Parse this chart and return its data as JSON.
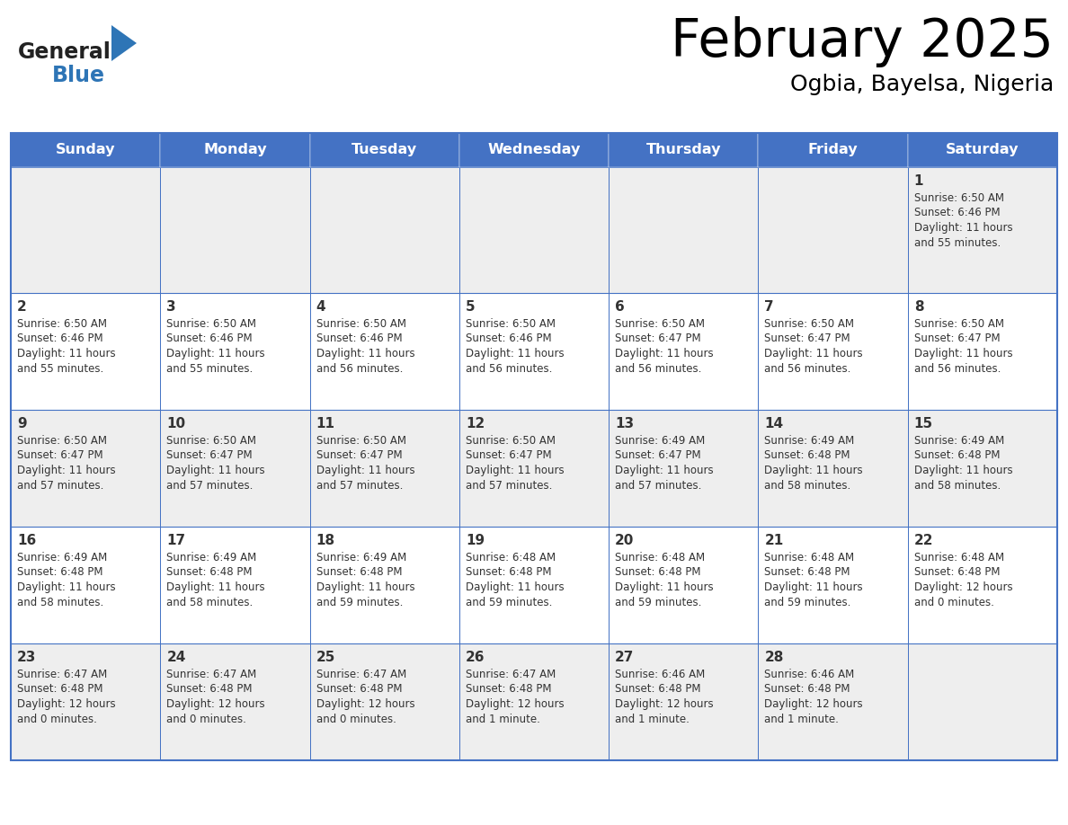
{
  "title": "February 2025",
  "subtitle": "Ogbia, Bayelsa, Nigeria",
  "header_bg": "#4472C4",
  "header_text_color": "#FFFFFF",
  "cell_bg_even": "#EEEEEE",
  "cell_bg_odd": "#FFFFFF",
  "border_color": "#4472C4",
  "text_color": "#333333",
  "day_names": [
    "Sunday",
    "Monday",
    "Tuesday",
    "Wednesday",
    "Thursday",
    "Friday",
    "Saturday"
  ],
  "logo_general_color": "#222222",
  "logo_blue_color": "#2E75B6",
  "calendar": [
    [
      {
        "day": "",
        "sunrise": "",
        "sunset": "",
        "daylight": ""
      },
      {
        "day": "",
        "sunrise": "",
        "sunset": "",
        "daylight": ""
      },
      {
        "day": "",
        "sunrise": "",
        "sunset": "",
        "daylight": ""
      },
      {
        "day": "",
        "sunrise": "",
        "sunset": "",
        "daylight": ""
      },
      {
        "day": "",
        "sunrise": "",
        "sunset": "",
        "daylight": ""
      },
      {
        "day": "",
        "sunrise": "",
        "sunset": "",
        "daylight": ""
      },
      {
        "day": "1",
        "sunrise": "6:50 AM",
        "sunset": "6:46 PM",
        "daylight": "11 hours\nand 55 minutes."
      }
    ],
    [
      {
        "day": "2",
        "sunrise": "6:50 AM",
        "sunset": "6:46 PM",
        "daylight": "11 hours\nand 55 minutes."
      },
      {
        "day": "3",
        "sunrise": "6:50 AM",
        "sunset": "6:46 PM",
        "daylight": "11 hours\nand 55 minutes."
      },
      {
        "day": "4",
        "sunrise": "6:50 AM",
        "sunset": "6:46 PM",
        "daylight": "11 hours\nand 56 minutes."
      },
      {
        "day": "5",
        "sunrise": "6:50 AM",
        "sunset": "6:46 PM",
        "daylight": "11 hours\nand 56 minutes."
      },
      {
        "day": "6",
        "sunrise": "6:50 AM",
        "sunset": "6:47 PM",
        "daylight": "11 hours\nand 56 minutes."
      },
      {
        "day": "7",
        "sunrise": "6:50 AM",
        "sunset": "6:47 PM",
        "daylight": "11 hours\nand 56 minutes."
      },
      {
        "day": "8",
        "sunrise": "6:50 AM",
        "sunset": "6:47 PM",
        "daylight": "11 hours\nand 56 minutes."
      }
    ],
    [
      {
        "day": "9",
        "sunrise": "6:50 AM",
        "sunset": "6:47 PM",
        "daylight": "11 hours\nand 57 minutes."
      },
      {
        "day": "10",
        "sunrise": "6:50 AM",
        "sunset": "6:47 PM",
        "daylight": "11 hours\nand 57 minutes."
      },
      {
        "day": "11",
        "sunrise": "6:50 AM",
        "sunset": "6:47 PM",
        "daylight": "11 hours\nand 57 minutes."
      },
      {
        "day": "12",
        "sunrise": "6:50 AM",
        "sunset": "6:47 PM",
        "daylight": "11 hours\nand 57 minutes."
      },
      {
        "day": "13",
        "sunrise": "6:49 AM",
        "sunset": "6:47 PM",
        "daylight": "11 hours\nand 57 minutes."
      },
      {
        "day": "14",
        "sunrise": "6:49 AM",
        "sunset": "6:48 PM",
        "daylight": "11 hours\nand 58 minutes."
      },
      {
        "day": "15",
        "sunrise": "6:49 AM",
        "sunset": "6:48 PM",
        "daylight": "11 hours\nand 58 minutes."
      }
    ],
    [
      {
        "day": "16",
        "sunrise": "6:49 AM",
        "sunset": "6:48 PM",
        "daylight": "11 hours\nand 58 minutes."
      },
      {
        "day": "17",
        "sunrise": "6:49 AM",
        "sunset": "6:48 PM",
        "daylight": "11 hours\nand 58 minutes."
      },
      {
        "day": "18",
        "sunrise": "6:49 AM",
        "sunset": "6:48 PM",
        "daylight": "11 hours\nand 59 minutes."
      },
      {
        "day": "19",
        "sunrise": "6:48 AM",
        "sunset": "6:48 PM",
        "daylight": "11 hours\nand 59 minutes."
      },
      {
        "day": "20",
        "sunrise": "6:48 AM",
        "sunset": "6:48 PM",
        "daylight": "11 hours\nand 59 minutes."
      },
      {
        "day": "21",
        "sunrise": "6:48 AM",
        "sunset": "6:48 PM",
        "daylight": "11 hours\nand 59 minutes."
      },
      {
        "day": "22",
        "sunrise": "6:48 AM",
        "sunset": "6:48 PM",
        "daylight": "12 hours\nand 0 minutes."
      }
    ],
    [
      {
        "day": "23",
        "sunrise": "6:47 AM",
        "sunset": "6:48 PM",
        "daylight": "12 hours\nand 0 minutes."
      },
      {
        "day": "24",
        "sunrise": "6:47 AM",
        "sunset": "6:48 PM",
        "daylight": "12 hours\nand 0 minutes."
      },
      {
        "day": "25",
        "sunrise": "6:47 AM",
        "sunset": "6:48 PM",
        "daylight": "12 hours\nand 0 minutes."
      },
      {
        "day": "26",
        "sunrise": "6:47 AM",
        "sunset": "6:48 PM",
        "daylight": "12 hours\nand 1 minute."
      },
      {
        "day": "27",
        "sunrise": "6:46 AM",
        "sunset": "6:48 PM",
        "daylight": "12 hours\nand 1 minute."
      },
      {
        "day": "28",
        "sunrise": "6:46 AM",
        "sunset": "6:48 PM",
        "daylight": "12 hours\nand 1 minute."
      },
      {
        "day": "",
        "sunrise": "",
        "sunset": "",
        "daylight": ""
      }
    ]
  ]
}
